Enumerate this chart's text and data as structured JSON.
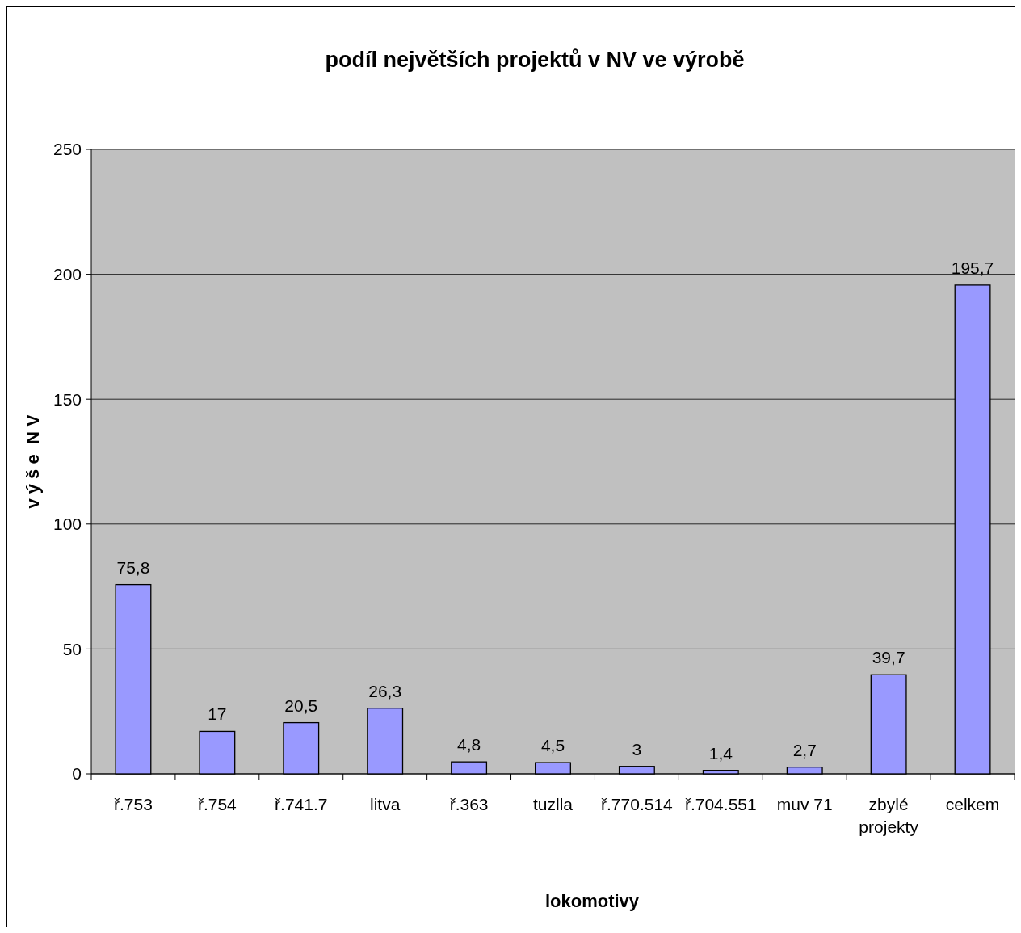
{
  "chart_data": {
    "type": "bar",
    "title": "podíl největších projektů v NV ve výrobě",
    "xlabel": "lokomotivy",
    "ylabel": "v ý š e  N V",
    "categories": [
      "ř.753",
      "ř.754",
      "ř.741.7",
      "litva",
      "ř.363",
      "tuzlla",
      "ř.770.514",
      "ř.704.551",
      "muv 71",
      "zbylé projekty",
      "celkem"
    ],
    "values": [
      75.8,
      17,
      20.5,
      26.3,
      4.8,
      4.5,
      3,
      1.4,
      2.7,
      39.7,
      195.7
    ],
    "value_labels": [
      "75,8",
      "17",
      "20,5",
      "26,3",
      "4,8",
      "4,5",
      "3",
      "1,4",
      "2,7",
      "39,7",
      "195,7"
    ],
    "color": "#9999ff",
    "ylim": [
      0,
      250
    ],
    "yticks": [
      0,
      50,
      100,
      150,
      200,
      250
    ],
    "grid": "y"
  }
}
